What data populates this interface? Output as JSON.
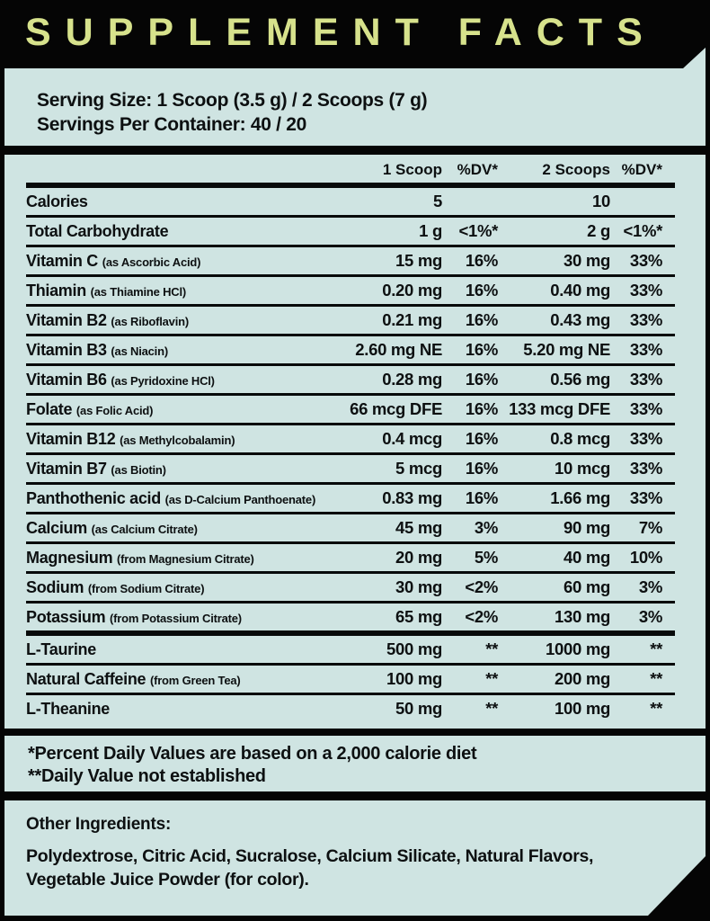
{
  "title": "SUPPLEMENT FACTS",
  "colors": {
    "background": "#050505",
    "panel": "#cfe4e2",
    "title_accent": "#d7e28c",
    "text": "#0d1011"
  },
  "serving": {
    "line1": "Serving Size: 1 Scoop (3.5 g) / 2 Scoops (7 g)",
    "line2": "Servings Per Container: 40 / 20"
  },
  "table": {
    "headers": {
      "amount1": "1 Scoop",
      "dv1": "%DV*",
      "amount2": "2 Scoops",
      "dv2": "%DV*"
    },
    "rows": [
      {
        "name": "Calories",
        "sub": "",
        "a1": "5",
        "dv1": "",
        "a2": "10",
        "dv2": ""
      },
      {
        "name": "Total Carbohydrate",
        "sub": "",
        "a1": "1 g",
        "dv1": "<1%*",
        "a2": "2 g",
        "dv2": "<1%*"
      },
      {
        "name": "Vitamin C",
        "sub": "(as Ascorbic Acid)",
        "a1": "15 mg",
        "dv1": "16%",
        "a2": "30 mg",
        "dv2": "33%"
      },
      {
        "name": "Thiamin",
        "sub": "(as Thiamine HCl)",
        "a1": "0.20 mg",
        "dv1": "16%",
        "a2": "0.40 mg",
        "dv2": "33%"
      },
      {
        "name": "Vitamin B2",
        "sub": "(as Riboflavin)",
        "a1": "0.21 mg",
        "dv1": "16%",
        "a2": "0.43 mg",
        "dv2": "33%"
      },
      {
        "name": "Vitamin B3",
        "sub": "(as Niacin)",
        "a1": "2.60 mg NE",
        "dv1": "16%",
        "a2": "5.20 mg NE",
        "dv2": "33%"
      },
      {
        "name": "Vitamin B6",
        "sub": "(as Pyridoxine HCl)",
        "a1": "0.28 mg",
        "dv1": "16%",
        "a2": "0.56 mg",
        "dv2": "33%"
      },
      {
        "name": "Folate",
        "sub": "(as Folic Acid)",
        "a1": "66 mcg DFE",
        "dv1": "16%",
        "a2": "133 mcg DFE",
        "dv2": "33%"
      },
      {
        "name": "Vitamin B12",
        "sub": "(as Methylcobalamin)",
        "a1": "0.4 mcg",
        "dv1": "16%",
        "a2": "0.8 mcg",
        "dv2": "33%"
      },
      {
        "name": "Vitamin B7",
        "sub": "(as Biotin)",
        "a1": "5 mcg",
        "dv1": "16%",
        "a2": "10 mcg",
        "dv2": "33%"
      },
      {
        "name": "Panthothenic acid",
        "sub": "(as D-Calcium Panthoenate)",
        "a1": "0.83 mg",
        "dv1": "16%",
        "a2": "1.66 mg",
        "dv2": "33%"
      },
      {
        "name": "Calcium",
        "sub": "(as Calcium Citrate)",
        "a1": "45 mg",
        "dv1": "3%",
        "a2": "90 mg",
        "dv2": "7%"
      },
      {
        "name": "Magnesium",
        "sub": "(from Magnesium Citrate)",
        "a1": "20 mg",
        "dv1": "5%",
        "a2": "40 mg",
        "dv2": "10%"
      },
      {
        "name": "Sodium",
        "sub": "(from Sodium Citrate)",
        "a1": "30 mg",
        "dv1": "<2%",
        "a2": "60 mg",
        "dv2": "3%"
      },
      {
        "name": "Potassium",
        "sub": "(from Potassium Citrate)",
        "a1": "65 mg",
        "dv1": "<2%",
        "a2": "130 mg",
        "dv2": "3%",
        "divider_after": "thick"
      },
      {
        "name": "L-Taurine",
        "sub": "",
        "a1": "500 mg",
        "dv1": "**",
        "a2": "1000 mg",
        "dv2": "**"
      },
      {
        "name": "Natural Caffeine",
        "sub": "(from Green Tea)",
        "a1": "100 mg",
        "dv1": "**",
        "a2": "200 mg",
        "dv2": "**"
      },
      {
        "name": "L-Theanine",
        "sub": "",
        "a1": "50 mg",
        "dv1": "**",
        "a2": "100 mg",
        "dv2": "**"
      }
    ]
  },
  "footnotes": {
    "line1": "*Percent Daily Values are based on a 2,000 calorie diet",
    "line2": "**Daily Value not established"
  },
  "other_ingredients": {
    "heading": "Other Ingredients:",
    "body": "Polydextrose, Citric Acid, Sucralose, Calcium Silicate,  Natural Flavors, Vegetable Juice Powder (for color)."
  }
}
